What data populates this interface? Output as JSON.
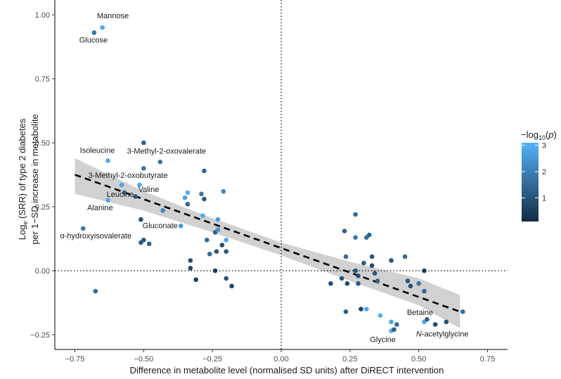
{
  "chart_data": {
    "type": "scatter",
    "title": "",
    "xlabel": "Difference in metabolite level (normalised SD units) after DiRECT intervention",
    "ylabel_parts": [
      "Log",
      "e",
      " (SRR) of type 2 diabetes",
      "per 1−SD increase in metabolite"
    ],
    "xlim": [
      -0.82,
      0.78
    ],
    "ylim": [
      -0.3,
      1.04
    ],
    "xticks": [
      -0.75,
      -0.5,
      -0.25,
      0.0,
      0.25,
      0.5,
      0.75
    ],
    "xtick_labels": [
      "−0.75",
      "−0.50",
      "−0.25",
      "0.00",
      "0.25",
      "0.50",
      "0.75"
    ],
    "yticks": [
      -0.25,
      0.0,
      0.25,
      0.5,
      0.75,
      1.0
    ],
    "ytick_labels": [
      "−0.25",
      "0.00",
      "0.25",
      "0.50",
      "0.75",
      "1.00"
    ],
    "reference_lines": {
      "x": 0.0,
      "y": 0.0,
      "style": "dotted"
    },
    "legend": {
      "title_parts": [
        "−log",
        "10",
        "(",
        "p",
        ")"
      ],
      "range": [
        0.1,
        3.1
      ],
      "ticks": [
        1,
        2,
        3
      ],
      "tick_labels": [
        "1",
        "2",
        "3"
      ],
      "color_low": "#132B43",
      "color_high": "#56B1F7",
      "placement": "right"
    },
    "fit": {
      "line": [
        [
          -0.75,
          0.375
        ],
        [
          0.65,
          -0.16
        ]
      ],
      "ci_upper": [
        [
          -0.75,
          0.44
        ],
        [
          -0.5,
          0.31
        ],
        [
          -0.25,
          0.205
        ],
        [
          0.0,
          0.11
        ],
        [
          0.25,
          0.035
        ],
        [
          0.5,
          -0.03
        ],
        [
          0.65,
          -0.095
        ]
      ],
      "ci_lower": [
        [
          -0.75,
          0.3
        ],
        [
          -0.5,
          0.235
        ],
        [
          -0.25,
          0.15
        ],
        [
          0.0,
          0.06
        ],
        [
          0.25,
          -0.04
        ],
        [
          0.5,
          -0.135
        ],
        [
          0.65,
          -0.225
        ]
      ],
      "line_color": "#000000",
      "band_color": "#c9c9c9"
    },
    "points": [
      {
        "x": -0.68,
        "y": 0.93,
        "p": 1.8,
        "label": "Glucose"
      },
      {
        "x": -0.65,
        "y": 0.95,
        "p": 3.0,
        "label": "Mannose"
      },
      {
        "x": -0.63,
        "y": 0.43,
        "p": 2.9,
        "label": "Isoleucine"
      },
      {
        "x": -0.44,
        "y": 0.425,
        "p": 1.8,
        "label": "3-Methyl-2-oxovalerate"
      },
      {
        "x": -0.58,
        "y": 0.335,
        "p": 2.8,
        "label": "3-Methyl-2-oxobutyrate"
      },
      {
        "x": -0.57,
        "y": 0.305,
        "p": 1.5,
        "label": "Leucine"
      },
      {
        "x": -0.515,
        "y": 0.335,
        "p": 2.9,
        "label": "Valine"
      },
      {
        "x": -0.63,
        "y": 0.275,
        "p": 2.9,
        "label": "Alanine"
      },
      {
        "x": -0.43,
        "y": 0.235,
        "p": 2.2,
        "label": "Gluconate"
      },
      {
        "x": -0.72,
        "y": 0.165,
        "p": 1.9,
        "label": "α-hydroxyisovalerate"
      },
      {
        "x": 0.52,
        "y": -0.2,
        "p": 2.9,
        "label": "Betaine"
      },
      {
        "x": 0.56,
        "y": -0.21,
        "p": 0.8,
        "label": "N-acetylglycine"
      },
      {
        "x": 0.4,
        "y": -0.235,
        "p": 3.0,
        "label": "Glycine"
      },
      {
        "x": -0.675,
        "y": -0.08,
        "p": 1.6,
        "label": ""
      },
      {
        "x": -0.5,
        "y": 0.5,
        "p": 1.3,
        "label": ""
      },
      {
        "x": -0.5,
        "y": 0.4,
        "p": 1.7,
        "label": ""
      },
      {
        "x": -0.53,
        "y": 0.29,
        "p": 1.1,
        "label": ""
      },
      {
        "x": -0.51,
        "y": 0.2,
        "p": 0.9,
        "label": ""
      },
      {
        "x": -0.51,
        "y": 0.11,
        "p": 1.2,
        "label": ""
      },
      {
        "x": -0.5,
        "y": 0.12,
        "p": 1.1,
        "label": ""
      },
      {
        "x": -0.48,
        "y": 0.105,
        "p": 1.3,
        "label": ""
      },
      {
        "x": -0.35,
        "y": 0.285,
        "p": 2.7,
        "label": ""
      },
      {
        "x": -0.34,
        "y": 0.305,
        "p": 3.0,
        "label": ""
      },
      {
        "x": -0.34,
        "y": 0.26,
        "p": 1.4,
        "label": ""
      },
      {
        "x": -0.365,
        "y": 0.175,
        "p": 2.5,
        "label": ""
      },
      {
        "x": -0.33,
        "y": 0.04,
        "p": 0.9,
        "label": ""
      },
      {
        "x": -0.33,
        "y": 0.01,
        "p": 0.8,
        "label": ""
      },
      {
        "x": -0.31,
        "y": -0.035,
        "p": 0.6,
        "label": ""
      },
      {
        "x": -0.29,
        "y": 0.3,
        "p": 1.8,
        "label": ""
      },
      {
        "x": -0.28,
        "y": 0.39,
        "p": 1.4,
        "label": ""
      },
      {
        "x": -0.28,
        "y": 0.28,
        "p": 1.2,
        "label": ""
      },
      {
        "x": -0.285,
        "y": 0.215,
        "p": 2.9,
        "label": ""
      },
      {
        "x": -0.27,
        "y": 0.12,
        "p": 1.6,
        "label": ""
      },
      {
        "x": -0.26,
        "y": 0.065,
        "p": 1.5,
        "label": ""
      },
      {
        "x": -0.24,
        "y": 0.15,
        "p": 1.3,
        "label": ""
      },
      {
        "x": -0.23,
        "y": 0.2,
        "p": 2.6,
        "label": ""
      },
      {
        "x": -0.23,
        "y": 0.16,
        "p": 2.4,
        "label": ""
      },
      {
        "x": -0.235,
        "y": 0.075,
        "p": 1.1,
        "label": ""
      },
      {
        "x": -0.24,
        "y": 0.0,
        "p": 0.5,
        "label": ""
      },
      {
        "x": -0.21,
        "y": 0.31,
        "p": 2.1,
        "label": ""
      },
      {
        "x": -0.215,
        "y": 0.1,
        "p": 0.9,
        "label": ""
      },
      {
        "x": -0.2,
        "y": 0.12,
        "p": 2.8,
        "label": ""
      },
      {
        "x": -0.2,
        "y": 0.075,
        "p": 1.2,
        "label": ""
      },
      {
        "x": -0.2,
        "y": -0.03,
        "p": 1.0,
        "label": ""
      },
      {
        "x": -0.18,
        "y": -0.06,
        "p": 0.7,
        "label": ""
      },
      {
        "x": 0.18,
        "y": -0.05,
        "p": 0.9,
        "label": ""
      },
      {
        "x": 0.22,
        "y": -0.03,
        "p": 1.0,
        "label": ""
      },
      {
        "x": 0.23,
        "y": 0.155,
        "p": 1.4,
        "label": ""
      },
      {
        "x": 0.235,
        "y": 0.055,
        "p": 1.6,
        "label": ""
      },
      {
        "x": 0.24,
        "y": -0.05,
        "p": 0.8,
        "label": ""
      },
      {
        "x": 0.235,
        "y": -0.16,
        "p": 1.3,
        "label": ""
      },
      {
        "x": 0.27,
        "y": 0.22,
        "p": 1.5,
        "label": ""
      },
      {
        "x": 0.27,
        "y": 0.13,
        "p": 1.8,
        "label": ""
      },
      {
        "x": 0.27,
        "y": 0.0,
        "p": 1.0,
        "label": ""
      },
      {
        "x": 0.28,
        "y": -0.02,
        "p": 0.9,
        "label": ""
      },
      {
        "x": 0.28,
        "y": -0.05,
        "p": 1.1,
        "label": ""
      },
      {
        "x": 0.29,
        "y": -0.15,
        "p": 0.7,
        "label": ""
      },
      {
        "x": 0.3,
        "y": 0.03,
        "p": 1.2,
        "label": ""
      },
      {
        "x": 0.31,
        "y": 0.13,
        "p": 1.6,
        "label": ""
      },
      {
        "x": 0.32,
        "y": 0.14,
        "p": 1.4,
        "label": ""
      },
      {
        "x": 0.31,
        "y": -0.15,
        "p": 2.9,
        "label": ""
      },
      {
        "x": 0.33,
        "y": 0.055,
        "p": 1.0,
        "label": ""
      },
      {
        "x": 0.33,
        "y": 0.02,
        "p": 0.8,
        "label": ""
      },
      {
        "x": 0.34,
        "y": -0.01,
        "p": 1.1,
        "label": ""
      },
      {
        "x": 0.35,
        "y": -0.04,
        "p": 1.3,
        "label": ""
      },
      {
        "x": 0.36,
        "y": -0.175,
        "p": 3.0,
        "label": ""
      },
      {
        "x": 0.4,
        "y": -0.2,
        "p": 2.8,
        "label": ""
      },
      {
        "x": 0.4,
        "y": 0.04,
        "p": 1.0,
        "label": ""
      },
      {
        "x": 0.41,
        "y": -0.23,
        "p": 1.2,
        "label": ""
      },
      {
        "x": 0.42,
        "y": -0.21,
        "p": 1.5,
        "label": ""
      },
      {
        "x": 0.45,
        "y": 0.055,
        "p": 1.6,
        "label": ""
      },
      {
        "x": 0.46,
        "y": -0.04,
        "p": 1.1,
        "label": ""
      },
      {
        "x": 0.47,
        "y": -0.06,
        "p": 0.9,
        "label": ""
      },
      {
        "x": 0.5,
        "y": -0.05,
        "p": 1.8,
        "label": ""
      },
      {
        "x": 0.52,
        "y": 0.0,
        "p": 0.5,
        "label": ""
      },
      {
        "x": 0.52,
        "y": -0.08,
        "p": 1.4,
        "label": ""
      },
      {
        "x": 0.53,
        "y": -0.19,
        "p": 1.3,
        "label": ""
      },
      {
        "x": 0.6,
        "y": -0.2,
        "p": 1.0,
        "label": ""
      },
      {
        "x": 0.66,
        "y": -0.16,
        "p": 1.6,
        "label": ""
      }
    ]
  }
}
